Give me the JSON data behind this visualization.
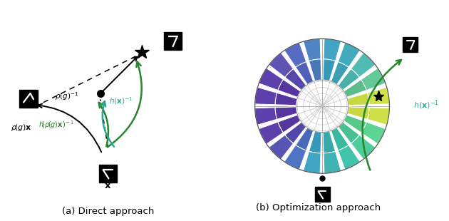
{
  "fig_width": 6.3,
  "fig_height": 3.1,
  "dpi": 100,
  "caption_a": "(a) Direct approach",
  "caption_b": "(b) Optimization approach",
  "green_color": "#2a862a",
  "teal_color": "#29a899",
  "black": "#000000",
  "white": "#ffffff",
  "panel_b_sector_colors": [
    "#c8d84a",
    "#56c49e",
    "#48b0b0",
    "#3a9a9e",
    "#4a9eb0",
    "#4488b8",
    "#5b5ab8",
    "#5b3fa0",
    "#5b3fa0",
    "#6348a8",
    "#5b3fa0",
    "#6348a8",
    "#5b3fa0",
    "#5b3fa0",
    "#4a7ab8",
    "#3a9e9e",
    "#48b0a0",
    "#56c090",
    "#4dab78",
    "#c8d84a"
  ],
  "panel_b_sector_colors_outer": [
    "#d4e84e",
    "#5ed4a8",
    "#50c0c0",
    "#42aaae",
    "#52aec0",
    "#4c98c8",
    "#6368c8",
    "#6348b0",
    "#6348b0",
    "#7058b8",
    "#6348b0",
    "#7058b8",
    "#6348b0",
    "#6348b0",
    "#5288c8",
    "#42aeae",
    "#50c0b0",
    "#5ed0a0",
    "#56bb88",
    "#d4e84e"
  ]
}
